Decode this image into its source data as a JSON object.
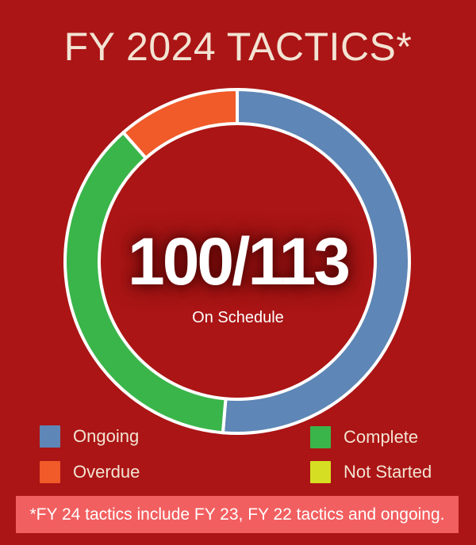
{
  "title": "FY 2024 TACTICS*",
  "center": {
    "value": "100/113",
    "label": "On Schedule"
  },
  "footnote": "*FY 24 tactics include FY 23, FY 22 tactics and ongoing.",
  "chart_data": {
    "type": "pie",
    "variant": "donut",
    "title": "FY 2024 TACTICS*",
    "total": 113,
    "start": "top",
    "direction": "clockwise",
    "legend_position": "bottom",
    "series": [
      {
        "name": "Ongoing",
        "value": 58,
        "color": "#5e86b6"
      },
      {
        "name": "Complete",
        "value": 42,
        "color": "#3ab54a"
      },
      {
        "name": "Overdue",
        "value": 13,
        "color": "#f15a29"
      },
      {
        "name": "Not Started",
        "value": 0,
        "color": "#d6de23"
      }
    ]
  }
}
